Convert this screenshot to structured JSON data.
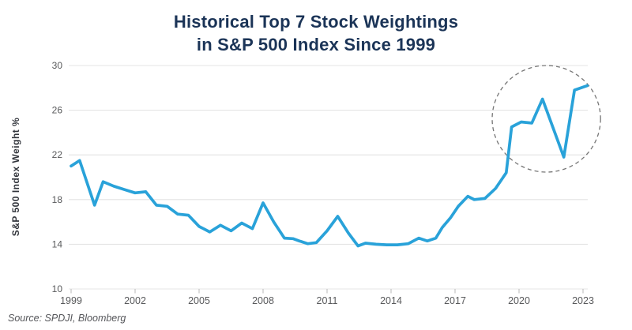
{
  "title": {
    "line1": "Historical Top 7 Stock Weightings",
    "line2": "in S&P 500 Index Since 1999"
  },
  "source": "Source: SPDJI, Bloomberg",
  "colors": {
    "background": "#FFFFFF",
    "line": "#29A2D9",
    "title": "#1B3457",
    "tick_label": "#58595B",
    "grid": "#E4E4E4",
    "axis_tick": "#C0C0C0",
    "y_axis_title": "#31343B",
    "source_text": "#55565A",
    "annotation_circle": "#767676"
  },
  "chart_data": {
    "type": "line",
    "title": "Historical Top 7 Stock Weightings in S&P 500 Index Since 1999",
    "xlabel": "",
    "ylabel": "S&P 500 Index Weight %",
    "x_ticks": [
      1999,
      2002,
      2005,
      2008,
      2011,
      2014,
      2017,
      2020,
      2023
    ],
    "y_ticks": [
      30,
      26,
      22,
      18,
      14,
      10
    ],
    "xlim": [
      1999,
      2023.2
    ],
    "ylim": [
      10,
      30
    ],
    "grid": "horizontal",
    "legend": "none",
    "series": [
      {
        "name": "Top 7 Stock Weighting",
        "points": [
          [
            1999.0,
            21.0
          ],
          [
            1999.4,
            21.5
          ],
          [
            2000.1,
            17.5
          ],
          [
            2000.5,
            19.6
          ],
          [
            2001.0,
            19.2
          ],
          [
            2001.5,
            18.9
          ],
          [
            2002.0,
            18.6
          ],
          [
            2002.5,
            18.7
          ],
          [
            2003.0,
            17.5
          ],
          [
            2003.5,
            17.4
          ],
          [
            2004.0,
            16.7
          ],
          [
            2004.5,
            16.6
          ],
          [
            2005.0,
            15.6
          ],
          [
            2005.5,
            15.1
          ],
          [
            2006.0,
            15.7
          ],
          [
            2006.5,
            15.2
          ],
          [
            2007.0,
            15.9
          ],
          [
            2007.5,
            15.4
          ],
          [
            2008.0,
            17.7
          ],
          [
            2008.5,
            16.0
          ],
          [
            2009.0,
            14.55
          ],
          [
            2009.4,
            14.5
          ],
          [
            2009.7,
            14.3
          ],
          [
            2010.1,
            14.05
          ],
          [
            2010.5,
            14.15
          ],
          [
            2011.0,
            15.2
          ],
          [
            2011.5,
            16.5
          ],
          [
            2012.0,
            15.0
          ],
          [
            2012.45,
            13.85
          ],
          [
            2012.8,
            14.1
          ],
          [
            2013.3,
            14.0
          ],
          [
            2013.8,
            13.95
          ],
          [
            2014.3,
            13.95
          ],
          [
            2014.8,
            14.05
          ],
          [
            2015.3,
            14.55
          ],
          [
            2015.7,
            14.3
          ],
          [
            2016.1,
            14.55
          ],
          [
            2016.4,
            15.5
          ],
          [
            2016.8,
            16.4
          ],
          [
            2017.15,
            17.4
          ],
          [
            2017.6,
            18.3
          ],
          [
            2017.9,
            18.0
          ],
          [
            2018.4,
            18.1
          ],
          [
            2018.9,
            19.0
          ],
          [
            2019.4,
            20.4
          ],
          [
            2019.65,
            24.5
          ],
          [
            2020.1,
            24.95
          ],
          [
            2020.6,
            24.85
          ],
          [
            2021.1,
            27.0
          ],
          [
            2022.1,
            21.8
          ],
          [
            2022.6,
            27.8
          ],
          [
            2023.2,
            28.2
          ]
        ]
      }
    ],
    "annotation": {
      "shape": "dashed-ellipse",
      "center": [
        2021.28,
        25.23
      ],
      "radius_years": 2.54,
      "radius_units": 4.77,
      "meaning": "highlights concentration spike 2019-2023"
    }
  }
}
